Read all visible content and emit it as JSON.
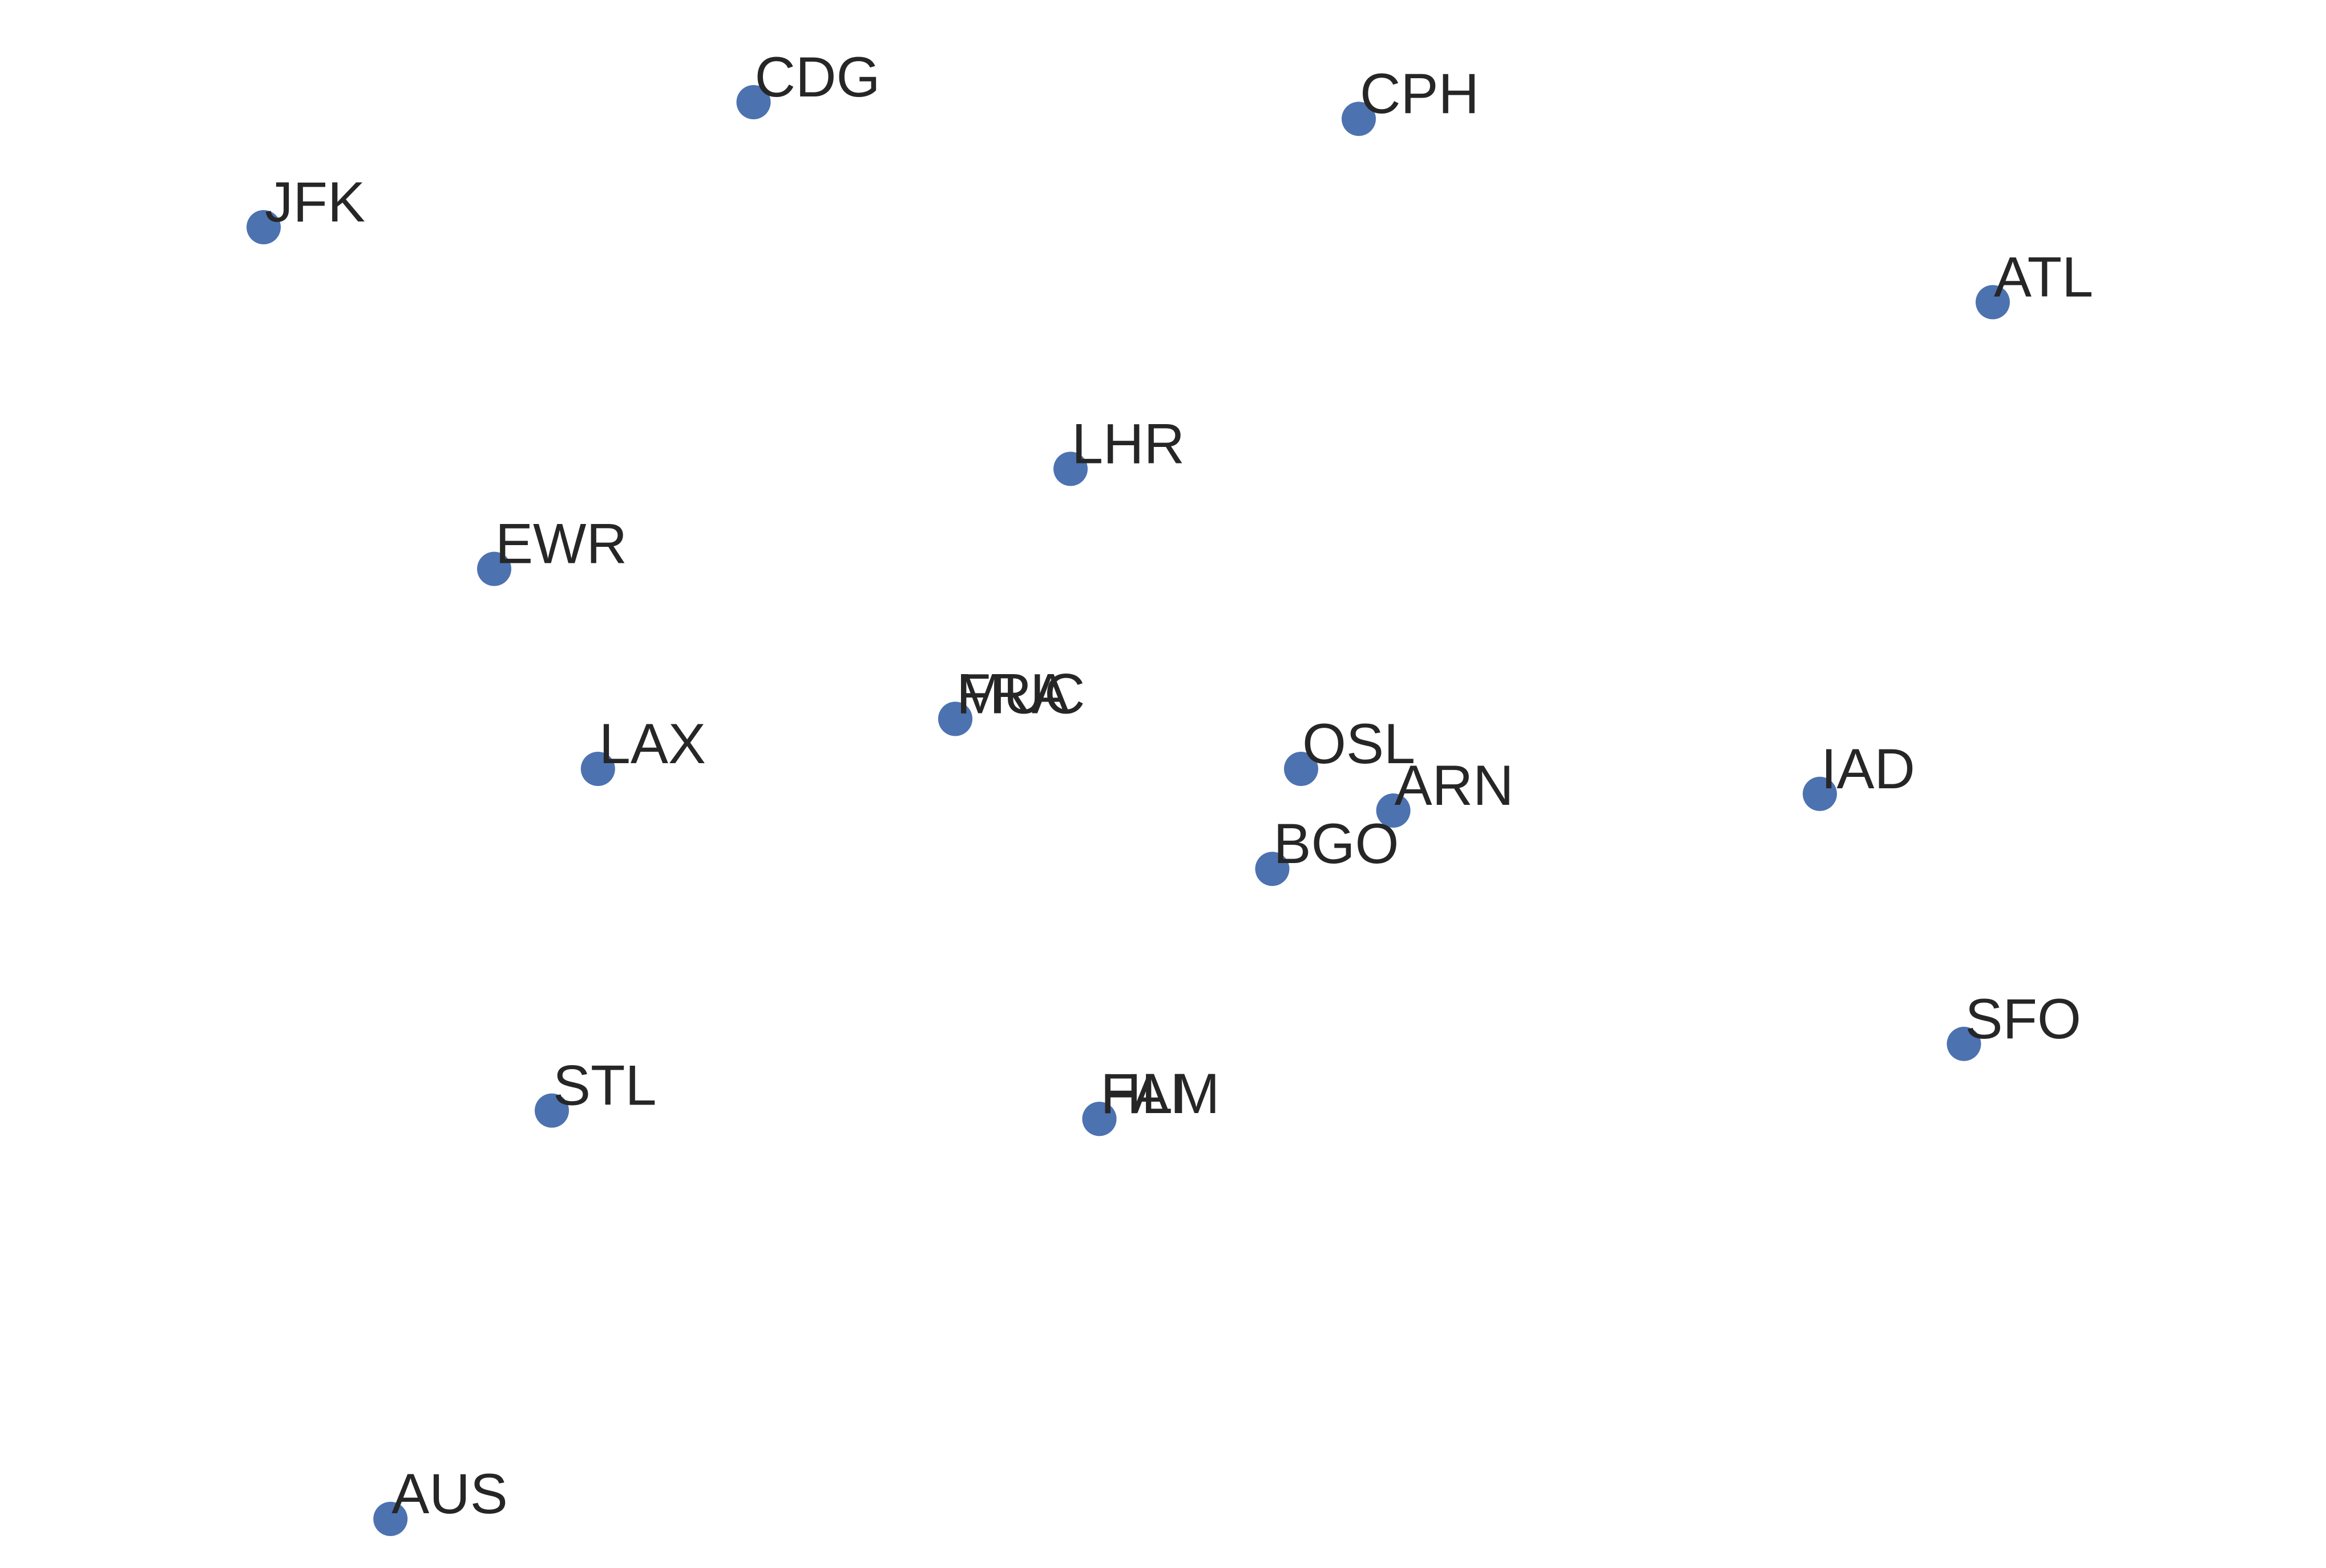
{
  "chart_data": {
    "type": "scatter",
    "title": "",
    "xlabel": "",
    "ylabel": "",
    "axes_visible": false,
    "grid": false,
    "marker_color": "#4c72b0",
    "label_color": "#262626",
    "points": [
      {
        "label": "CDG",
        "x": -0.45,
        "y": 1.1
      },
      {
        "label": "CPH",
        "x": 0.6,
        "y": 1.08
      },
      {
        "label": "JFK",
        "x": -1.3,
        "y": 0.95
      },
      {
        "label": "ATL",
        "x": 1.7,
        "y": 0.86
      },
      {
        "label": "LHR",
        "x": 0.1,
        "y": 0.66
      },
      {
        "label": "EWR",
        "x": -0.9,
        "y": 0.54
      },
      {
        "label": "FRA",
        "x": -0.1,
        "y": 0.36
      },
      {
        "label": "MUC",
        "x": -0.1,
        "y": 0.36
      },
      {
        "label": "LAX",
        "x": -0.72,
        "y": 0.3
      },
      {
        "label": "OSL",
        "x": 0.5,
        "y": 0.3
      },
      {
        "label": "ARN",
        "x": 0.66,
        "y": 0.25
      },
      {
        "label": "IAD",
        "x": 1.4,
        "y": 0.27
      },
      {
        "label": "BGO",
        "x": 0.45,
        "y": 0.18
      },
      {
        "label": "SFO",
        "x": 1.65,
        "y": -0.03
      },
      {
        "label": "STL",
        "x": -0.8,
        "y": -0.11
      },
      {
        "label": "FAI",
        "x": 0.15,
        "y": -0.12
      },
      {
        "label": "HLM",
        "x": 0.15,
        "y": -0.12
      },
      {
        "label": "AUS",
        "x": -1.08,
        "y": -0.6
      }
    ]
  }
}
